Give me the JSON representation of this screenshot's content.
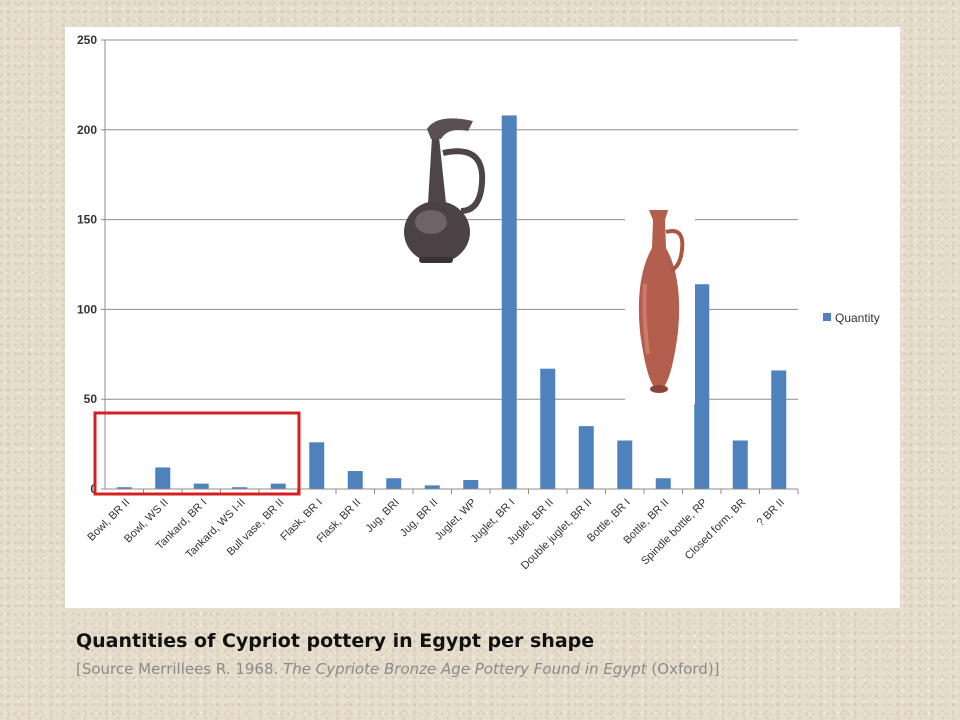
{
  "caption": {
    "title": "Quantities of Cypriot pottery in Egypt per shape",
    "source_prefix": "[Source Merrillees R. 1968. ",
    "source_italic": "The Cypriote Bronze Age Pottery Found in Egypt",
    "source_suffix": " (Oxford)]"
  },
  "chart_data": {
    "type": "bar",
    "categories": [
      "Bowl, BR II",
      "Bowl, WS II",
      "Tankard, BR I",
      "Tankard, WS I-II",
      "Bull vase, BR II",
      "Flask, BR I",
      "Flask, BR II",
      "Jug, BRI",
      "Jug, BR II",
      "Juglet, WP",
      "Juglet, BR I",
      "Juglet, BR II",
      "Double juglet, BR II",
      "Bottle, BR I",
      "Bottle, BR II",
      "Spindle bottle, RP",
      "Closed form, BR",
      "? BR II"
    ],
    "series": [
      {
        "name": "Quantity",
        "values": [
          1,
          12,
          3,
          1,
          3,
          26,
          10,
          6,
          2,
          5,
          208,
          67,
          35,
          27,
          6,
          114,
          27,
          66
        ],
        "color": "#4f81bd"
      }
    ],
    "ylim": [
      0,
      250
    ],
    "yticks": [
      0,
      50,
      100,
      150,
      200,
      250
    ],
    "grid": true,
    "legend_position": "right",
    "highlight_color": "#d42020",
    "highlight_categories": [
      "Bowl, BR II",
      "Bull vase, BR II"
    ]
  },
  "images": {
    "jug_icon": "cypriot-jug-photo",
    "spindle_icon": "spindle-bottle-photo"
  }
}
